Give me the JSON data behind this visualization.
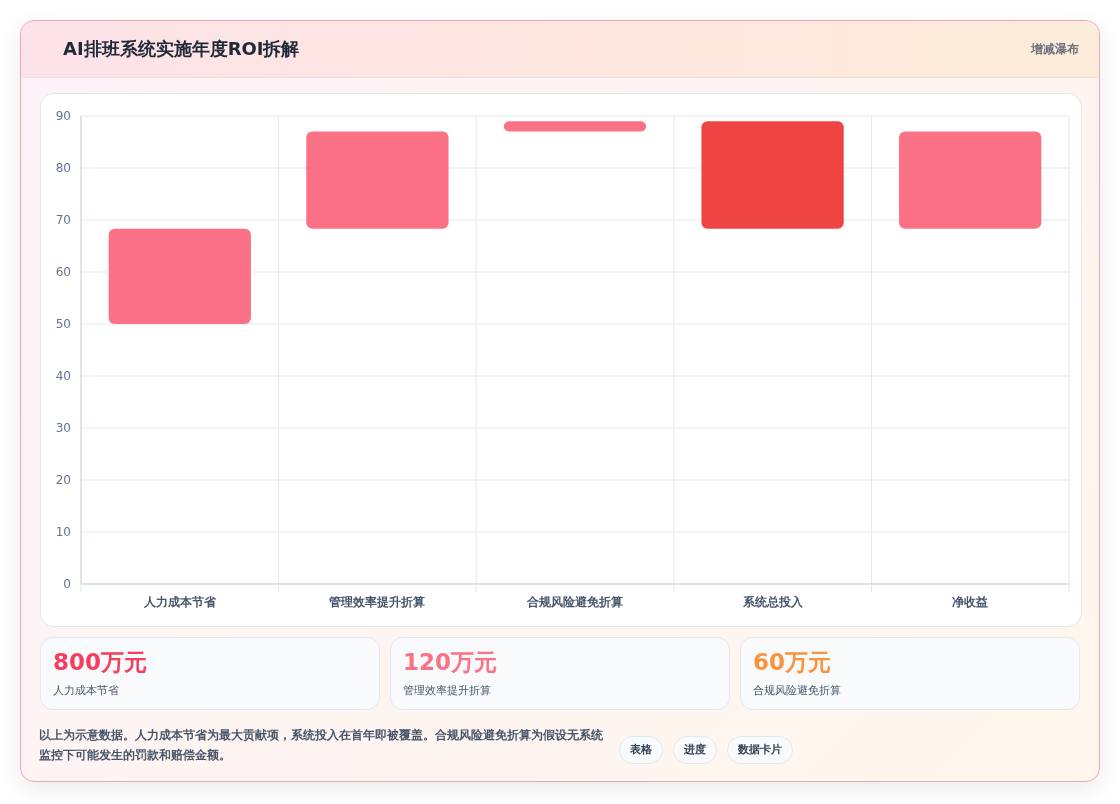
{
  "chart_data": [
    {
      "type": "bar",
      "title": "AI排班系统实施年度ROI拆解",
      "subtitle": "增减瀑布",
      "categories": [
        "人力成本节省",
        "管理效率提升折算",
        "合规风险避免折算",
        "系统总投入",
        "净收益"
      ],
      "base": [
        50,
        68.3,
        87,
        68.3,
        68.3
      ],
      "values": [
        18.3,
        18.7,
        2,
        20.7,
        18.7
      ],
      "colors": [
        "#fb7185",
        "#fb7185",
        "#fb7185",
        "#ef4444",
        "#fb7185"
      ],
      "ylim": [
        0,
        90
      ],
      "yticks": [
        0,
        10,
        20,
        30,
        40,
        50,
        60,
        70,
        80,
        90
      ],
      "grid": true,
      "annotations": [
        "以上为示意数据。人力成本节省为最大贡献项，系统投入在首年即被覆盖。合规风险避免折算为假设无系统监控下可能发生的罚款和赔偿金额。",
        "表格",
        "进度",
        "数据卡片"
      ]
    },
    {
      "type": "other",
      "categories": [
        "人力成本节省",
        "管理效率提升折算",
        "合规风险避免折算"
      ],
      "values": [
        800,
        120,
        60
      ],
      "value_labels": [
        "800万元",
        "120万元",
        "60万元"
      ]
    }
  ]
}
